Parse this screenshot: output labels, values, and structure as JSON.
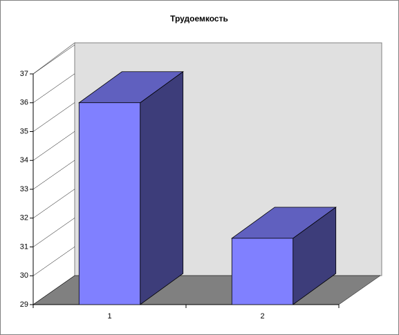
{
  "chart_data": {
    "type": "bar",
    "title": "Трудоемкость",
    "categories": [
      "1",
      "2"
    ],
    "values": [
      36,
      31.3
    ],
    "color": "#8080ff",
    "ylim": [
      29,
      37
    ],
    "yticks": [
      29,
      30,
      31,
      32,
      33,
      34,
      35,
      36,
      37
    ],
    "grid": false
  }
}
